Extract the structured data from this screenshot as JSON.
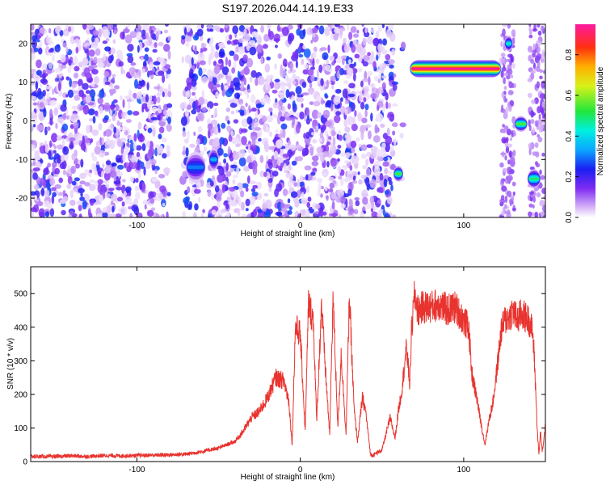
{
  "title": "S197.2026.044.14.19.E33",
  "colors": {
    "snr_line": "#e8332e",
    "spectro_base": "#ffffff"
  },
  "chart_data": [
    {
      "type": "heatmap",
      "xlabel": "Height of straight line (km)",
      "ylabel": "Frequency (Hz)",
      "xlim": [
        -165,
        150
      ],
      "ylim": [
        -25,
        25
      ],
      "xticks": [
        -100,
        0,
        100
      ],
      "xtick_labels": [
        "-100",
        "0",
        "100"
      ],
      "yticks": [
        -20,
        -10,
        0,
        10,
        20
      ],
      "ytick_labels": [
        "-20",
        "-10",
        "0",
        "10",
        "20"
      ],
      "colorbar": {
        "label": "Normalized spectral amplitude",
        "range": [
          0,
          0.95
        ],
        "ticks": [
          0.0,
          0.2,
          0.4,
          0.6,
          0.8
        ],
        "tick_labels": [
          "0.0",
          "0.2",
          "0.4",
          "0.6",
          "0.8"
        ],
        "colormap": "rainbow (white-violet-blue-cyan-green-yellow-orange-red-magenta)"
      },
      "noise_band": {
        "x_start": -165,
        "x_end": 63,
        "level": 0.12
      },
      "gaps": [
        [
          -80,
          -72
        ],
        [
          -58,
          -56
        ],
        [
          -17,
          -16
        ],
        [
          58,
          62
        ],
        [
          63,
          67
        ],
        [
          117,
          122
        ]
      ],
      "features": [
        {
          "x0": 67,
          "x1": 123,
          "y": 13.5,
          "thickness_hz": 2.2,
          "peak": 0.95
        },
        {
          "x0": 125,
          "x1": 130,
          "y": 20,
          "thickness_hz": 2.0,
          "peak": 0.45
        },
        {
          "x0": 131,
          "x1": 139,
          "y": -0.8,
          "thickness_hz": 2.0,
          "peak": 0.55
        },
        {
          "x0": 139,
          "x1": 147,
          "y": -15,
          "thickness_hz": 2.5,
          "peak": 0.5
        },
        {
          "x0": 57,
          "x1": 63,
          "y": -13.7,
          "thickness_hz": 2.0,
          "peak": 0.55
        },
        {
          "x0": -70,
          "x1": -58,
          "y": -12,
          "thickness_hz": 4.0,
          "peak": 0.3
        },
        {
          "x0": -56,
          "x1": -50,
          "y": -10,
          "thickness_hz": 3.0,
          "peak": 0.35
        }
      ]
    },
    {
      "type": "line",
      "xlabel": "Height of straight line (km)",
      "ylabel": "SNR (10 * v/v)",
      "xlim": [
        -165,
        150
      ],
      "ylim": [
        0,
        580
      ],
      "xticks": [
        -100,
        0,
        100
      ],
      "xtick_labels": [
        "-100",
        "0",
        "100"
      ],
      "yticks": [
        0,
        100,
        200,
        300,
        400,
        500
      ],
      "ytick_labels": [
        "0",
        "100",
        "200",
        "300",
        "400",
        "500"
      ],
      "series": [
        {
          "x": [
            -165,
            -150,
            -140,
            -130,
            -120,
            -110,
            -100,
            -90,
            -80,
            -70,
            -60,
            -50,
            -40,
            -35,
            -30,
            -25,
            -20,
            -15,
            -10,
            -7,
            -5,
            -3,
            0,
            3,
            5,
            8,
            10,
            13,
            15,
            18,
            20,
            23,
            25,
            28,
            30,
            33,
            35,
            38,
            40,
            43,
            45,
            50,
            55,
            58,
            60,
            62,
            65,
            67,
            68,
            70,
            72,
            75,
            80,
            85,
            90,
            95,
            100,
            103,
            105,
            108,
            110,
            113,
            115,
            118,
            120,
            123,
            125,
            128,
            130,
            133,
            135,
            138,
            140,
            142,
            143,
            144,
            145,
            146,
            147,
            148,
            149,
            150
          ],
          "values": [
            15,
            15,
            17,
            15,
            18,
            17,
            18,
            19,
            20,
            22,
            30,
            40,
            60,
            90,
            130,
            150,
            190,
            250,
            240,
            180,
            50,
            400,
            380,
            90,
            470,
            420,
            120,
            470,
            300,
            80,
            490,
            100,
            320,
            80,
            490,
            150,
            60,
            190,
            150,
            20,
            20,
            35,
            130,
            70,
            150,
            210,
            340,
            230,
            380,
            500,
            450,
            460,
            460,
            470,
            450,
            460,
            420,
            400,
            260,
            190,
            130,
            50,
            110,
            180,
            260,
            390,
            420,
            430,
            450,
            420,
            440,
            430,
            420,
            390,
            330,
            220,
            100,
            20,
            90,
            30,
            60,
            110
          ]
        }
      ]
    }
  ]
}
